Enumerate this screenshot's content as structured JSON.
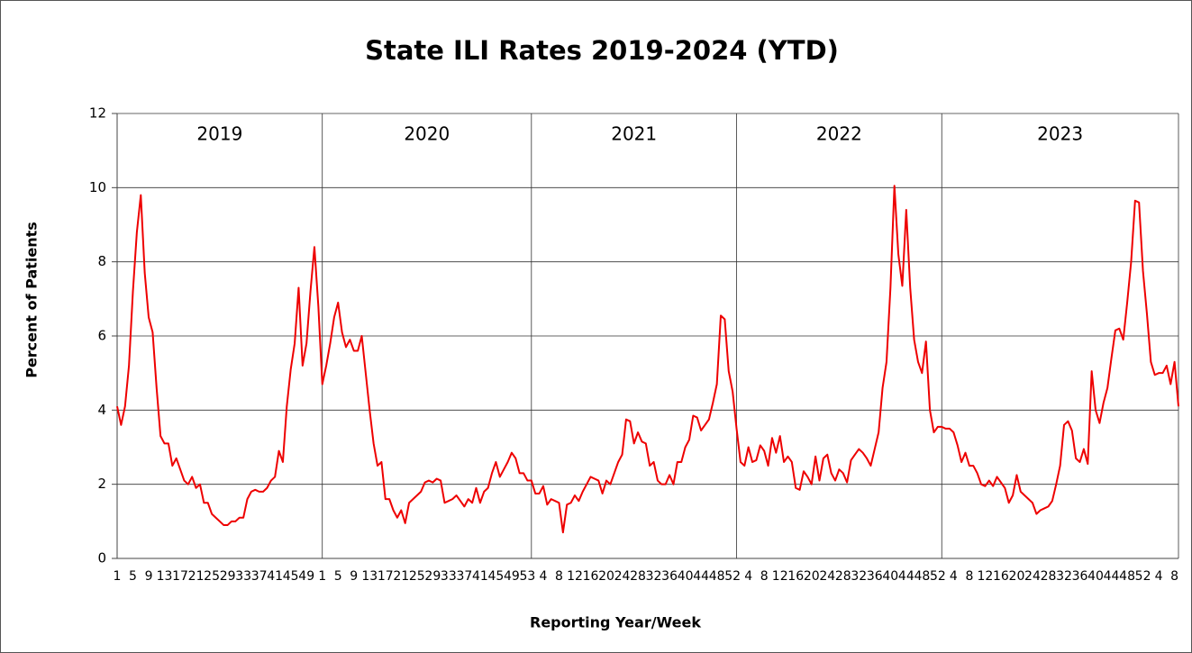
{
  "chart_data": {
    "type": "line",
    "title": "State ILI Rates 2019-2024 (YTD)",
    "x_label": "Reporting Year/Week",
    "y_label": "Percent of Patients",
    "years": [
      "2019",
      "2020",
      "2021",
      "2022",
      "2023"
    ],
    "categories": [
      1,
      null,
      null,
      null,
      5,
      null,
      null,
      null,
      9,
      null,
      null,
      null,
      13,
      null,
      null,
      null,
      17,
      null,
      null,
      null,
      21,
      null,
      null,
      null,
      25,
      null,
      null,
      null,
      29,
      null,
      null,
      null,
      33,
      null,
      null,
      null,
      37,
      null,
      null,
      null,
      41,
      null,
      null,
      null,
      45,
      null,
      null,
      null,
      49,
      null,
      null,
      null,
      1,
      null,
      null,
      null,
      5,
      null,
      null,
      null,
      9,
      null,
      null,
      null,
      13,
      null,
      null,
      null,
      17,
      null,
      null,
      null,
      21,
      null,
      null,
      null,
      25,
      null,
      null,
      null,
      29,
      null,
      null,
      null,
      33,
      null,
      null,
      null,
      37,
      null,
      null,
      null,
      41,
      null,
      null,
      null,
      45,
      null,
      null,
      null,
      49,
      null,
      null,
      null,
      53,
      null,
      null,
      null,
      4,
      null,
      null,
      null,
      8,
      null,
      null,
      null,
      12,
      null,
      null,
      null,
      16,
      null,
      null,
      null,
      20,
      null,
      null,
      null,
      24,
      null,
      null,
      null,
      28,
      null,
      null,
      null,
      32,
      null,
      null,
      null,
      36,
      null,
      null,
      null,
      40,
      null,
      null,
      null,
      44,
      null,
      null,
      null,
      48,
      null,
      null,
      null,
      52,
      null,
      null,
      null,
      4,
      null,
      null,
      null,
      8,
      null,
      null,
      null,
      12,
      null,
      null,
      null,
      16,
      null,
      null,
      null,
      20,
      null,
      null,
      null,
      24,
      null,
      null,
      null,
      28,
      null,
      null,
      null,
      32,
      null,
      null,
      null,
      36,
      null,
      null,
      null,
      40,
      null,
      null,
      null,
      44,
      null,
      null,
      null,
      48,
      null,
      null,
      null,
      52,
      null,
      null,
      null,
      4,
      null,
      null,
      null,
      8,
      null,
      null,
      null,
      12,
      null,
      null,
      null,
      16,
      null,
      null,
      null,
      20,
      null,
      null,
      null,
      24,
      null,
      null,
      null,
      28,
      null,
      null,
      null,
      32,
      null,
      null,
      null,
      36,
      null,
      null,
      null,
      40,
      null,
      null,
      null,
      44,
      null,
      null,
      null,
      48,
      null,
      null,
      null,
      52,
      null,
      null,
      null,
      4,
      null,
      null,
      null,
      8,
      null
    ],
    "series": [
      {
        "name": "ILI",
        "color": "#ee0000",
        "values": [
          4.1,
          3.6,
          4.1,
          5.2,
          7.2,
          8.8,
          9.8,
          7.7,
          6.5,
          6.1,
          4.6,
          3.3,
          3.1,
          3.1,
          2.5,
          2.7,
          2.4,
          2.1,
          2.0,
          2.2,
          1.9,
          2.0,
          1.5,
          1.5,
          1.2,
          1.1,
          1.0,
          0.9,
          0.9,
          1.0,
          1.0,
          1.1,
          1.1,
          1.6,
          1.8,
          1.85,
          1.8,
          1.8,
          1.9,
          2.1,
          2.2,
          2.9,
          2.6,
          4.1,
          5.1,
          5.8,
          7.3,
          5.2,
          5.8,
          7.2,
          8.4,
          6.8,
          4.7,
          5.2,
          5.8,
          6.5,
          6.9,
          6.1,
          5.7,
          5.9,
          5.6,
          5.6,
          6.0,
          5.0,
          4.0,
          3.1,
          2.5,
          2.6,
          1.6,
          1.6,
          1.3,
          1.1,
          1.3,
          0.95,
          1.5,
          1.6,
          1.7,
          1.8,
          2.05,
          2.1,
          2.05,
          2.15,
          2.1,
          1.5,
          1.55,
          1.6,
          1.7,
          1.55,
          1.4,
          1.6,
          1.5,
          1.9,
          1.5,
          1.8,
          1.9,
          2.3,
          2.6,
          2.2,
          2.4,
          2.6,
          2.85,
          2.7,
          2.3,
          2.3,
          2.1,
          2.1,
          1.75,
          1.75,
          1.95,
          1.45,
          1.6,
          1.55,
          1.5,
          0.7,
          1.45,
          1.5,
          1.7,
          1.55,
          1.8,
          2.0,
          2.2,
          2.15,
          2.1,
          1.75,
          2.1,
          2.0,
          2.3,
          2.6,
          2.8,
          3.75,
          3.7,
          3.1,
          3.4,
          3.15,
          3.1,
          2.5,
          2.6,
          2.1,
          2.0,
          2.0,
          2.25,
          2.0,
          2.6,
          2.6,
          3.0,
          3.2,
          3.85,
          3.8,
          3.45,
          3.6,
          3.75,
          4.2,
          4.7,
          6.55,
          6.45,
          5.05,
          4.5,
          3.5,
          2.6,
          2.5,
          3.0,
          2.6,
          2.65,
          3.05,
          2.9,
          2.5,
          3.25,
          2.85,
          3.3,
          2.6,
          2.75,
          2.6,
          1.9,
          1.85,
          2.35,
          2.2,
          2.0,
          2.75,
          2.1,
          2.7,
          2.8,
          2.3,
          2.1,
          2.4,
          2.3,
          2.05,
          2.65,
          2.8,
          2.95,
          2.85,
          2.7,
          2.5,
          2.95,
          3.4,
          4.6,
          5.3,
          7.3,
          10.05,
          8.2,
          7.35,
          9.4,
          7.3,
          5.9,
          5.3,
          5.0,
          5.85,
          4.0,
          3.4,
          3.55,
          3.55,
          3.5,
          3.5,
          3.4,
          3.05,
          2.6,
          2.85,
          2.5,
          2.5,
          2.3,
          2.0,
          1.95,
          2.1,
          1.95,
          2.2,
          2.05,
          1.9,
          1.5,
          1.7,
          2.25,
          1.8,
          1.7,
          1.6,
          1.5,
          1.2,
          1.3,
          1.35,
          1.4,
          1.55,
          2.0,
          2.5,
          3.6,
          3.7,
          3.45,
          2.7,
          2.6,
          2.95,
          2.55,
          5.05,
          4.0,
          3.65,
          4.2,
          4.6,
          5.4,
          6.15,
          6.2,
          5.9,
          6.9,
          8.0,
          9.65,
          9.6,
          7.75,
          6.6,
          5.3,
          4.95,
          5.0,
          5.0,
          5.2,
          4.7,
          5.3,
          4.1
        ]
      }
    ],
    "ylim": [
      0,
      12
    ],
    "yticks": [
      0,
      2,
      4,
      6,
      8,
      10,
      12
    ],
    "grid": true
  }
}
